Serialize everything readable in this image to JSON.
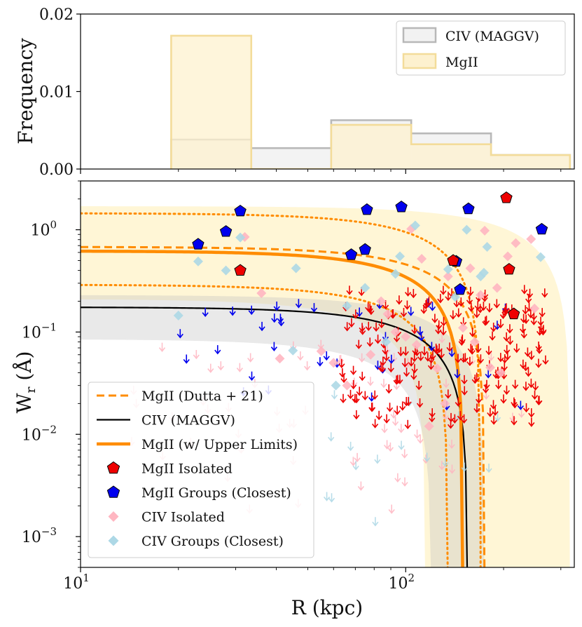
{
  "chart_data": [
    {
      "type": "histogram",
      "ylabel": "Frequency",
      "xscale": "log",
      "xlim": [
        10,
        330
      ],
      "ylim": [
        0,
        0.02
      ],
      "y_ticks": [
        {
          "value": 0.0,
          "label": "0.00"
        },
        {
          "value": 0.01,
          "label": "0.01"
        },
        {
          "value": 0.02,
          "label": "0.02"
        }
      ],
      "legend_position": "top-right",
      "series": [
        {
          "name": "CIV (MAGGV)",
          "color": "#b8b8b8",
          "fill": "#f2f2f2",
          "bins": [
            {
              "x0": 19,
              "x1": 33.5,
              "value": 0.0038
            },
            {
              "x0": 33.5,
              "x1": 59,
              "value": 0.0027
            },
            {
              "x0": 59,
              "x1": 104,
              "value": 0.0063
            },
            {
              "x0": 104,
              "x1": 183,
              "value": 0.0046
            },
            {
              "x0": 183,
              "x1": 320,
              "value": 0.0018
            }
          ]
        },
        {
          "name": "MgII",
          "color": "#f3dc9a",
          "fill": "#fdf1cf",
          "bins": [
            {
              "x0": 19,
              "x1": 33.5,
              "value": 0.0172
            },
            {
              "x0": 33.5,
              "x1": 59,
              "value": 0.0
            },
            {
              "x0": 59,
              "x1": 104,
              "value": 0.0057
            },
            {
              "x0": 104,
              "x1": 183,
              "value": 0.0032
            },
            {
              "x0": 183,
              "x1": 320,
              "value": 0.0018
            }
          ]
        }
      ]
    },
    {
      "type": "scatter",
      "xlabel": "R (kpc)",
      "ylabel": "W_r (Å)",
      "ylabel_main": "W",
      "ylabel_sub": "r",
      "ylabel_unit": " (Å)",
      "xscale": "log",
      "yscale": "log",
      "xlim": [
        10,
        330
      ],
      "ylim": [
        0.0005,
        3
      ],
      "x_ticks": [
        {
          "value": 10,
          "label": "10",
          "sup": "1"
        },
        {
          "value": 100,
          "label": "10",
          "sup": "2"
        }
      ],
      "y_ticks": [
        {
          "value": 0.001,
          "label": "10",
          "sup": "−3"
        },
        {
          "value": 0.01,
          "label": "10",
          "sup": "−2"
        },
        {
          "value": 0.1,
          "label": "10",
          "sup": "−1"
        },
        {
          "value": 1,
          "label": "10",
          "sup": "0"
        }
      ],
      "legend_position": "lower-left",
      "legend": [
        {
          "label": "MgII (Dutta + 21)",
          "kind": "dashed",
          "color": "#ff8c00"
        },
        {
          "label": "CIV (MAGGV)",
          "kind": "line",
          "color": "#000000"
        },
        {
          "label": "MgII (w/ Upper Limits)",
          "kind": "thick",
          "color": "#ff8c00"
        },
        {
          "label": "MgII Isolated",
          "kind": "pentagon",
          "color": "#ee0000"
        },
        {
          "label": "MgII Groups (Closest)",
          "kind": "pentagon",
          "color": "#0000ee"
        },
        {
          "label": "CIV Isolated",
          "kind": "diamond",
          "color": "#ffb6c1"
        },
        {
          "label": "CIV Groups (Closest)",
          "kind": "diamond",
          "color": "#add8e6"
        }
      ],
      "models": {
        "mgii_fit": {
          "A": 0.62,
          "Rc": 150,
          "color": "#ff8c00"
        },
        "mgii_dutta": {
          "A": 0.68,
          "Rc": 175,
          "color": "#ff8c00"
        },
        "mgii_dotted_upper": {
          "A": 1.45,
          "Rc": 170,
          "color": "#ff8c00"
        },
        "mgii_dotted_lower": {
          "A": 0.29,
          "Rc": 135,
          "color": "#ff8c00"
        },
        "mgii_band_upper": {
          "A": 1.7,
          "Rc": 320
        },
        "mgii_band_lower": {
          "A": 0.21,
          "Rc": 115
        },
        "civ_fit": {
          "A": 0.175,
          "Rc": 155,
          "color": "#000000"
        },
        "civ_band_upper": {
          "A": 0.23,
          "Rc": 175
        },
        "civ_band_lower": {
          "A": 0.085,
          "Rc": 120
        }
      },
      "mgii_isolated": [
        [
          31,
          0.4
        ],
        [
          140,
          0.5
        ],
        [
          204,
          2.05
        ],
        [
          208,
          0.41
        ],
        [
          215,
          0.15
        ]
      ],
      "mgii_groups": [
        [
          23,
          0.72
        ],
        [
          28,
          0.96
        ],
        [
          31,
          1.52
        ],
        [
          68,
          0.57
        ],
        [
          75,
          0.64
        ],
        [
          76,
          1.57
        ],
        [
          97,
          1.67
        ],
        [
          147,
          0.26
        ],
        [
          156,
          1.6
        ],
        [
          262,
          1.01
        ],
        [
          143,
          0.49
        ]
      ],
      "civ_isolated": [
        [
          32,
          0.85
        ],
        [
          36,
          0.24
        ],
        [
          41,
          0.055
        ],
        [
          104,
          1.02
        ],
        [
          112,
          0.52
        ],
        [
          135,
          0.35
        ],
        [
          158,
          0.42
        ],
        [
          170,
          0.23
        ],
        [
          175,
          0.98
        ],
        [
          191,
          0.27
        ],
        [
          206,
          0.55
        ],
        [
          218,
          0.74
        ],
        [
          243,
          0.81
        ],
        [
          249,
          0.17
        ],
        [
          84,
          0.2
        ],
        [
          88,
          0.15
        ],
        [
          93,
          0.1
        ],
        [
          100,
          0.09
        ],
        [
          78,
          0.06
        ],
        [
          66,
          0.03
        ],
        [
          125,
          0.044
        ],
        [
          132,
          0.02
        ],
        [
          118,
          0.012
        ],
        [
          108,
          0.075
        ],
        [
          150,
          0.11
        ],
        [
          163,
          0.08
        ],
        [
          182,
          0.045
        ],
        [
          196,
          0.04
        ],
        [
          60,
          0.05
        ],
        [
          55,
          0.065
        ]
      ],
      "civ_groups": [
        [
          20,
          0.145
        ],
        [
          23,
          0.49
        ],
        [
          28,
          0.4
        ],
        [
          31,
          0.84
        ],
        [
          46,
          0.42
        ],
        [
          45,
          0.066
        ],
        [
          61,
          0.03
        ],
        [
          66,
          0.18
        ],
        [
          75,
          0.27
        ],
        [
          93,
          0.37
        ],
        [
          96,
          0.55
        ],
        [
          107,
          1.1
        ],
        [
          135,
          0.41
        ],
        [
          154,
          1.0
        ],
        [
          174,
          0.38
        ],
        [
          178,
          0.68
        ],
        [
          260,
          0.54
        ],
        [
          170,
          0.35
        ],
        [
          142,
          0.22
        ],
        [
          87,
          0.08
        ]
      ],
      "mgii_upper_limits": {
        "count": 220,
        "x_range": [
          63,
          272
        ],
        "y_range": [
          0.011,
          0.24
        ],
        "color": "#ee0000"
      },
      "mgii_groups_upper_limits": {
        "count": 40,
        "x_range": [
          19,
          240
        ],
        "y_range": [
          0.015,
          0.18
        ],
        "color": "#0000ee"
      },
      "civ_isolated_upper_limits": {
        "count": 70,
        "x_range": [
          14,
          230
        ],
        "y_range": [
          0.0016,
          0.08
        ],
        "color": "#ffb6c1"
      },
      "civ_groups_upper_limits": {
        "count": 16,
        "x_range": [
          50,
          200
        ],
        "y_range": [
          0.0012,
          0.03
        ],
        "color": "#add8e6"
      }
    }
  ]
}
